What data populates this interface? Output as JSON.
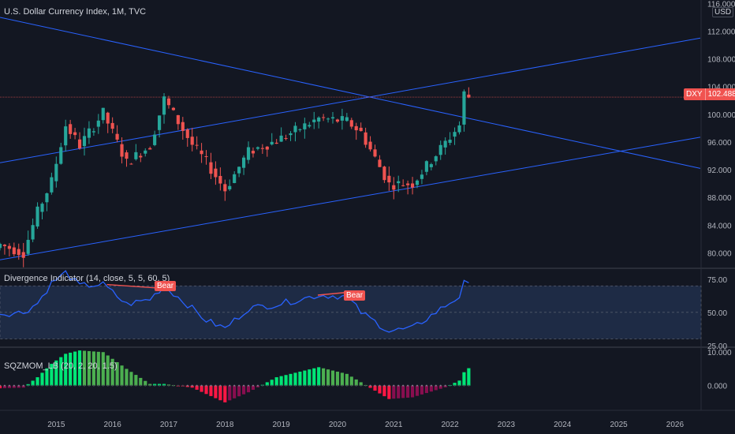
{
  "main_pane": {
    "title": "U.S. Dollar Currency Index, 1M, TVC",
    "currency": "USD",
    "price_tag": {
      "symbol": "DXY",
      "value": "102.488"
    },
    "y_ticks": [
      "116.000",
      "112.000",
      "108.000",
      "104.000",
      "100.000",
      "96.000",
      "92.000",
      "88.000",
      "84.000",
      "80.000"
    ]
  },
  "divergence_pane": {
    "title": "Divergence Indicator (14, close, 5, 5, 60, 5)",
    "y_ticks": [
      "75.00",
      "50.00",
      "25.00"
    ],
    "badges": [
      "Bear",
      "Bear"
    ]
  },
  "sqz_pane": {
    "title": "SQZMOM_LB (20, 2, 20, 1.5)",
    "y_ticks": [
      "10.000",
      "0.000"
    ]
  },
  "x_axis": {
    "labels": [
      "2015",
      "2016",
      "2017",
      "2018",
      "2019",
      "2020",
      "2021",
      "2022",
      "2023",
      "2024",
      "2025",
      "2026"
    ]
  },
  "colors": {
    "background": "#131722",
    "up": "#26a69a",
    "down": "#ef5350",
    "trendline": "#2962ff",
    "rsi": "#2962ff",
    "band": "#1e2b45",
    "sqz_up_strong": "#00e676",
    "sqz_up_weak": "#4caf50",
    "sqz_down_strong": "#ff1744",
    "sqz_down_weak": "#880e4f"
  },
  "chart_data": [
    {
      "type": "candlestick",
      "title": "U.S. Dollar Currency Index, 1M, TVC",
      "x_range": [
        "2014-01",
        "2026-06"
      ],
      "ylim": [
        78,
        116.5
      ],
      "last_close": 102.488,
      "approx_monthly_close": [
        {
          "x": "2014-01",
          "y": 81.2
        },
        {
          "x": "2014-06",
          "y": 80.0
        },
        {
          "x": "2014-09",
          "y": 85.9
        },
        {
          "x": "2014-12",
          "y": 90.3
        },
        {
          "x": "2015-03",
          "y": 98.4
        },
        {
          "x": "2015-06",
          "y": 95.5
        },
        {
          "x": "2015-11",
          "y": 100.2
        },
        {
          "x": "2016-04",
          "y": 93.0
        },
        {
          "x": "2016-09",
          "y": 95.5
        },
        {
          "x": "2016-12",
          "y": 102.2
        },
        {
          "x": "2017-06",
          "y": 95.6
        },
        {
          "x": "2017-09",
          "y": 93.1
        },
        {
          "x": "2018-01",
          "y": 89.1
        },
        {
          "x": "2018-06",
          "y": 94.6
        },
        {
          "x": "2018-12",
          "y": 96.2
        },
        {
          "x": "2019-09",
          "y": 99.4
        },
        {
          "x": "2020-03",
          "y": 99.0
        },
        {
          "x": "2020-06",
          "y": 97.4
        },
        {
          "x": "2020-12",
          "y": 89.9
        },
        {
          "x": "2021-05",
          "y": 90.0
        },
        {
          "x": "2021-12",
          "y": 95.9
        },
        {
          "x": "2022-03",
          "y": 98.4
        },
        {
          "x": "2022-04",
          "y": 103.0
        },
        {
          "x": "2022-05",
          "y": 102.5
        }
      ]
    },
    {
      "type": "line",
      "title": "Divergence Indicator (14, close, 5, 5, 60, 5)",
      "ylim": [
        25,
        82
      ],
      "band": [
        30,
        70
      ],
      "midline": 50,
      "series": [
        {
          "values": [
            {
              "x": "2014-01",
              "y": 49
            },
            {
              "x": "2014-06",
              "y": 50
            },
            {
              "x": "2014-09",
              "y": 57
            },
            {
              "x": "2014-12",
              "y": 72
            },
            {
              "x": "2015-03",
              "y": 80
            },
            {
              "x": "2015-06",
              "y": 70
            },
            {
              "x": "2015-11",
              "y": 71
            },
            {
              "x": "2016-04",
              "y": 56
            },
            {
              "x": "2016-09",
              "y": 60
            },
            {
              "x": "2016-12",
              "y": 70
            },
            {
              "x": "2017-06",
              "y": 53
            },
            {
              "x": "2017-09",
              "y": 44
            },
            {
              "x": "2018-01",
              "y": 38
            },
            {
              "x": "2018-06",
              "y": 53
            },
            {
              "x": "2018-12",
              "y": 56
            },
            {
              "x": "2019-09",
              "y": 63
            },
            {
              "x": "2020-03",
              "y": 62
            },
            {
              "x": "2020-06",
              "y": 50
            },
            {
              "x": "2020-12",
              "y": 36
            },
            {
              "x": "2021-05",
              "y": 38
            },
            {
              "x": "2021-12",
              "y": 55
            },
            {
              "x": "2022-03",
              "y": 62
            },
            {
              "x": "2022-04",
              "y": 72
            },
            {
              "x": "2022-05",
              "y": 70
            }
          ]
        }
      ],
      "annotations": [
        {
          "text": "Bear",
          "x": "2016-12"
        },
        {
          "text": "Bear",
          "x": "2019-12"
        }
      ]
    },
    {
      "type": "bar",
      "title": "SQZMOM_LB (20, 2, 20, 1.5)",
      "ylim": [
        -5.5,
        11
      ],
      "values": [
        {
          "x": "2014-01",
          "y": -0.8
        },
        {
          "x": "2014-06",
          "y": -0.6
        },
        {
          "x": "2014-09",
          "y": 2.5
        },
        {
          "x": "2014-12",
          "y": 6.5
        },
        {
          "x": "2015-03",
          "y": 9.5
        },
        {
          "x": "2015-06",
          "y": 10.5
        },
        {
          "x": "2015-11",
          "y": 10.0
        },
        {
          "x": "2016-04",
          "y": 5.0
        },
        {
          "x": "2016-09",
          "y": 0.5
        },
        {
          "x": "2016-12",
          "y": 0.5
        },
        {
          "x": "2017-06",
          "y": -0.6
        },
        {
          "x": "2017-09",
          "y": -2.5
        },
        {
          "x": "2018-01",
          "y": -5.0
        },
        {
          "x": "2018-06",
          "y": -2.0
        },
        {
          "x": "2018-12",
          "y": 2.5
        },
        {
          "x": "2019-09",
          "y": 5.5
        },
        {
          "x": "2020-03",
          "y": 3.5
        },
        {
          "x": "2020-06",
          "y": 1.0
        },
        {
          "x": "2020-12",
          "y": -4.0
        },
        {
          "x": "2021-05",
          "y": -3.5
        },
        {
          "x": "2021-12",
          "y": -0.5
        },
        {
          "x": "2022-03",
          "y": 1.5
        },
        {
          "x": "2022-04",
          "y": 4.0
        },
        {
          "x": "2022-05",
          "y": 5.2
        }
      ]
    }
  ]
}
